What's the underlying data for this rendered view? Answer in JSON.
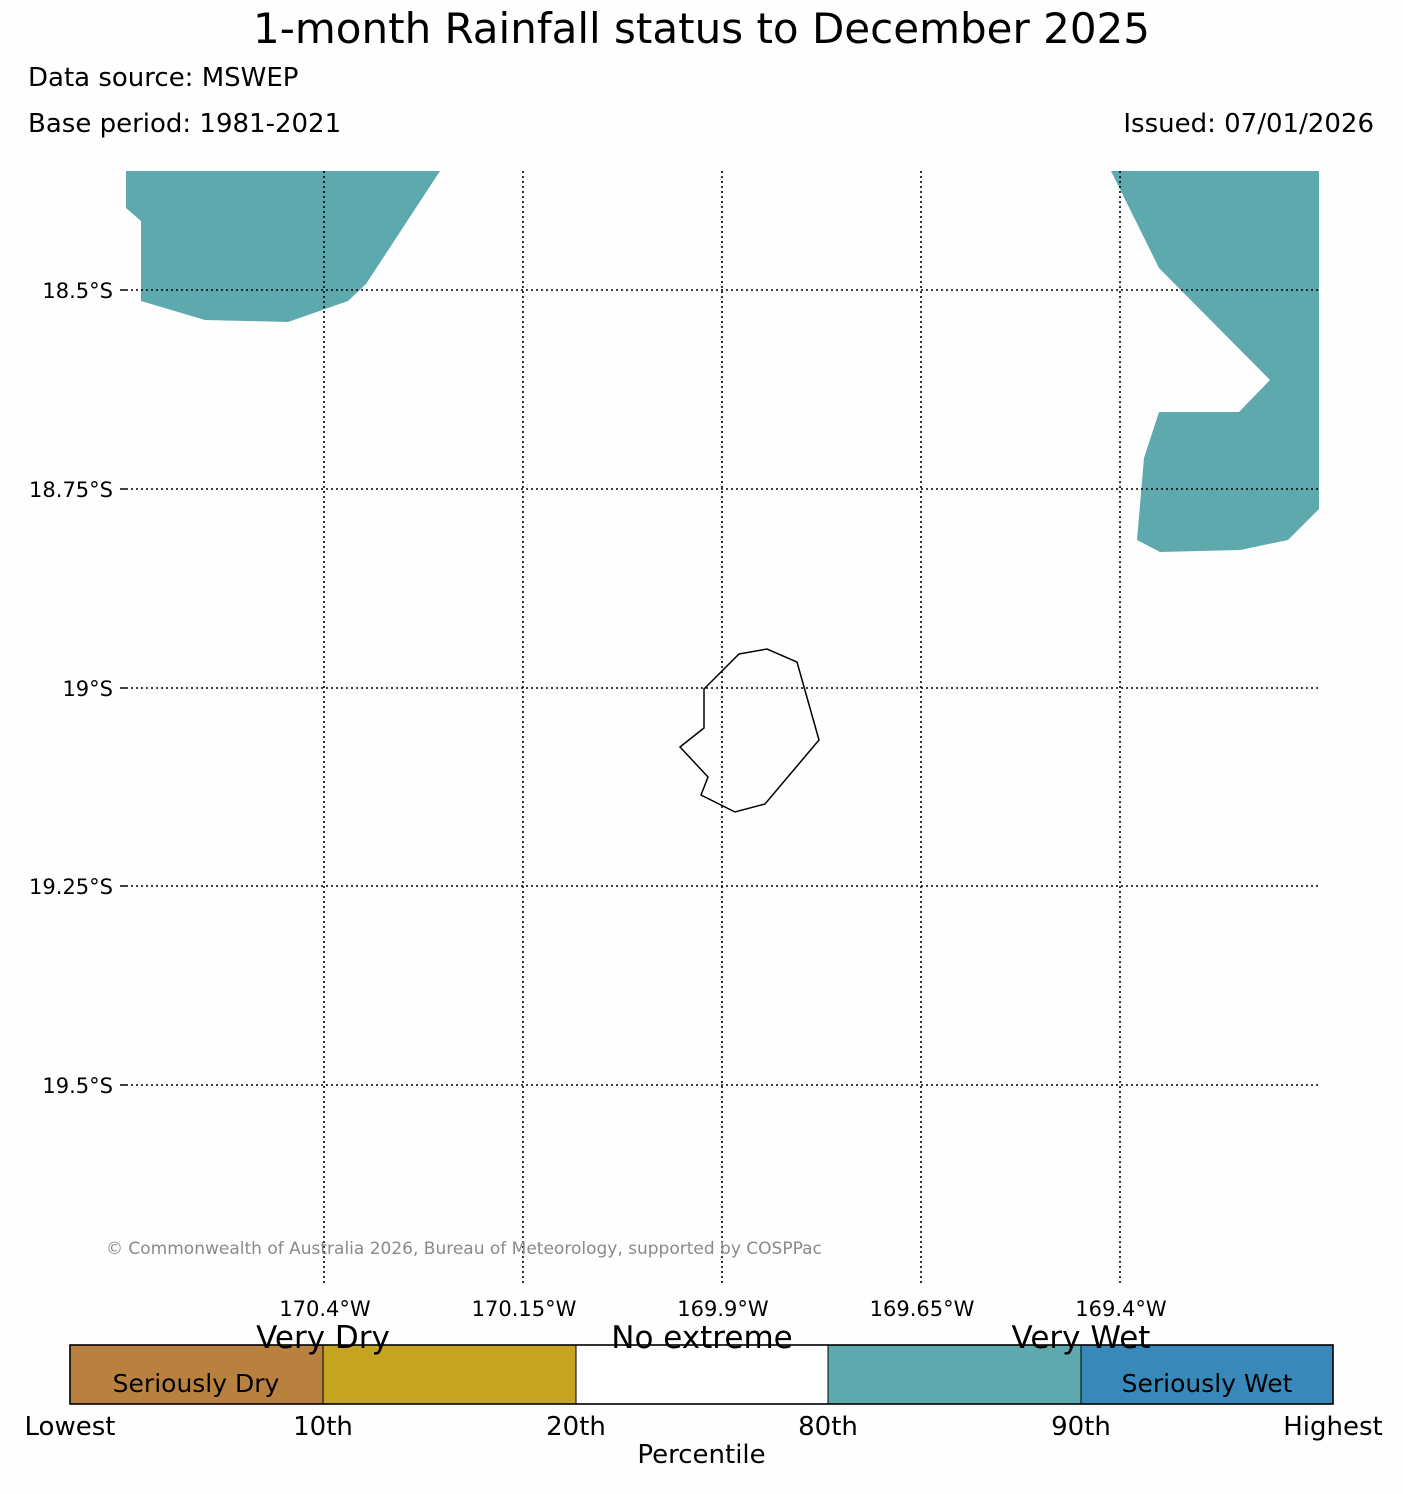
{
  "header": {
    "title": "1-month Rainfall status to December 2025",
    "data_source": "Data source: MSWEP",
    "base_period": "Base period: 1981-2021",
    "issued": "Issued: 07/01/2026"
  },
  "map": {
    "lat_labels": [
      "18.5°S",
      "18.75°S",
      "19°S",
      "19.25°S",
      "19.5°S"
    ],
    "lon_labels": [
      "170.4°W",
      "170.15°W",
      "169.9°W",
      "169.65°W",
      "169.4°W"
    ],
    "regions": [
      {
        "name": "northwest-wet-region",
        "category": "Very Wet"
      },
      {
        "name": "northeast-wet-region",
        "category": "Very Wet"
      },
      {
        "name": "niue-island-outline",
        "category": "coastline"
      }
    ],
    "copyright": "© Commonwealth of Australia 2026, Bureau of Meteorology, supported by COSPPac"
  },
  "legend": {
    "categories": [
      "Very Dry",
      "No extreme",
      "Very Wet"
    ],
    "segments": [
      {
        "label": "Seriously Dry",
        "color": "#b98140"
      },
      {
        "label": "",
        "color": "#c4a420"
      },
      {
        "label": "",
        "color": "#ffffff"
      },
      {
        "label": "",
        "color": "#5ea9ae"
      },
      {
        "label": "Seriously Wet",
        "color": "#3888b9"
      }
    ],
    "ticks": [
      "Lowest",
      "10th",
      "20th",
      "80th",
      "90th",
      "Highest"
    ],
    "axis_title": "Percentile"
  },
  "colors": {
    "very_wet": "#5ea9ae",
    "grid": "#000000",
    "copyright": "#8a8a8a"
  }
}
